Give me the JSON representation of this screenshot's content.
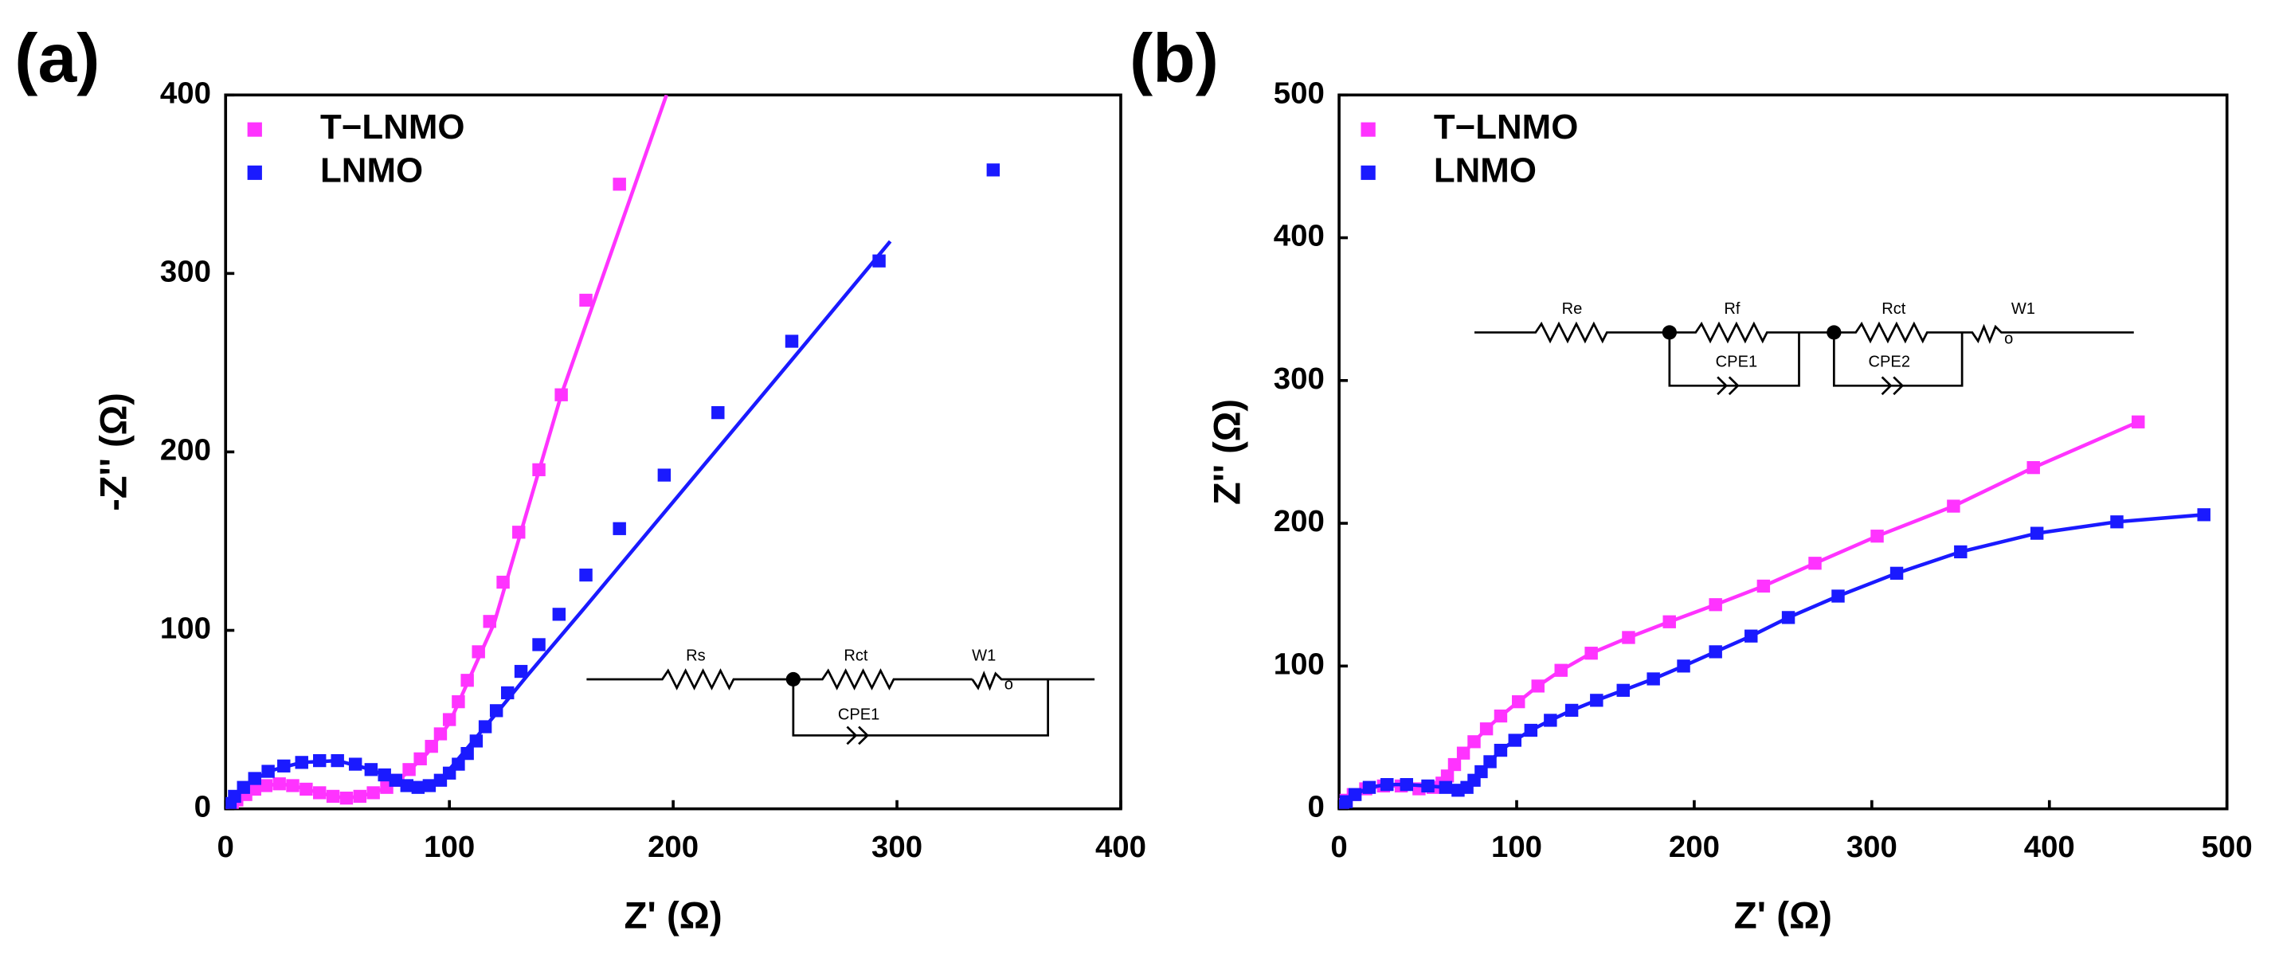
{
  "chart_data": [
    {
      "type": "scatter",
      "panel_label": "(a)",
      "xlabel": "Z' (Ω)",
      "ylabel": "-Z'' (Ω)",
      "xlim": [
        0,
        400
      ],
      "ylim": [
        0,
        400
      ],
      "xticks": [
        0,
        100,
        200,
        300,
        400
      ],
      "yticks": [
        0,
        100,
        200,
        300,
        400
      ],
      "legend": "upper left",
      "inset_labels": [
        "Rs",
        "Rct",
        "W1",
        "CPE1"
      ],
      "series": [
        {
          "name": "T−LNMO",
          "color": "#ff33ff",
          "x": [
            3,
            5,
            9,
            13,
            18,
            24,
            30,
            36,
            42,
            48,
            54,
            60,
            66,
            72,
            77,
            82,
            87,
            92,
            96,
            100,
            104,
            108,
            113,
            118,
            124,
            131,
            140,
            150,
            161,
            176
          ],
          "values": [
            2,
            5,
            8,
            11,
            13,
            14,
            13,
            11,
            9,
            7,
            6,
            7,
            9,
            12,
            16,
            22,
            28,
            35,
            42,
            50,
            60,
            72,
            88,
            105,
            127,
            155,
            190,
            232,
            285,
            350
          ]
        },
        {
          "name": "LNMO",
          "color": "#1a1aff",
          "x": [
            2,
            4,
            8,
            13,
            19,
            26,
            34,
            42,
            50,
            58,
            65,
            71,
            76,
            81,
            86,
            91,
            96,
            100,
            104,
            108,
            112,
            116,
            121,
            126,
            132,
            140,
            149,
            161,
            176,
            196,
            220,
            253,
            292,
            343
          ],
          "values": [
            3,
            7,
            12,
            17,
            21,
            24,
            26,
            27,
            27,
            25,
            22,
            19,
            16,
            13,
            12,
            13,
            16,
            20,
            25,
            31,
            38,
            46,
            55,
            65,
            77,
            92,
            109,
            131,
            157,
            187,
            222,
            262,
            307,
            358
          ]
        }
      ],
      "fits": [
        {
          "color": "#ff33ff",
          "x": [
            0,
            3,
            9,
            18,
            24,
            30,
            36,
            42,
            48,
            54,
            60,
            66,
            72,
            80,
            90,
            100,
            120,
            150,
            197
          ],
          "values": [
            0,
            2,
            8,
            13,
            14,
            13,
            11,
            9,
            7,
            6,
            7,
            9,
            12,
            19,
            31,
            48,
            104,
            232,
            400
          ]
        },
        {
          "color": "#1a1aff",
          "x": [
            0,
            2,
            8,
            19,
            34,
            50,
            65,
            76,
            86,
            96,
            104,
            112,
            122,
            135,
            160,
            200,
            250,
            297
          ],
          "values": [
            0,
            3,
            12,
            21,
            26,
            27,
            22,
            16,
            12,
            16,
            28,
            40,
            55,
            75,
            112,
            172,
            247,
            318
          ]
        }
      ]
    },
    {
      "type": "scatter",
      "panel_label": "(b)",
      "xlabel": "Z' (Ω)",
      "ylabel": "Z'' (Ω)",
      "xlim": [
        0,
        500
      ],
      "ylim": [
        0,
        500
      ],
      "xticks": [
        0,
        100,
        200,
        300,
        400,
        500
      ],
      "yticks": [
        0,
        100,
        200,
        300,
        400,
        500
      ],
      "legend": "upper left",
      "inset_labels": [
        "Re",
        "Rf",
        "Rct",
        "W1",
        "CPE1",
        "CPE2"
      ],
      "series": [
        {
          "name": "T−LNMO",
          "color": "#ff33ff",
          "line": true,
          "x": [
            2,
            4,
            8,
            15,
            25,
            35,
            45,
            53,
            58,
            61,
            65,
            70,
            76,
            83,
            91,
            101,
            112,
            125,
            142,
            163,
            186,
            212,
            239,
            268,
            303,
            346,
            391,
            450
          ],
          "values": [
            3,
            6,
            10,
            14,
            16,
            16,
            14,
            15,
            18,
            23,
            31,
            39,
            47,
            56,
            65,
            75,
            86,
            97,
            109,
            120,
            131,
            143,
            156,
            172,
            191,
            212,
            239,
            271
          ]
        },
        {
          "name": "LNMO",
          "color": "#1a1aff",
          "line": true,
          "x": [
            2,
            4,
            9,
            17,
            27,
            38,
            50,
            60,
            67,
            72,
            76,
            80,
            85,
            91,
            99,
            108,
            119,
            131,
            145,
            160,
            177,
            194,
            212,
            232,
            253,
            281,
            314,
            350,
            393,
            438,
            487
          ],
          "values": [
            2,
            5,
            10,
            15,
            17,
            17,
            16,
            15,
            13,
            15,
            20,
            26,
            33,
            41,
            48,
            55,
            62,
            69,
            76,
            83,
            91,
            100,
            110,
            121,
            134,
            149,
            165,
            180,
            193,
            201,
            206
          ]
        }
      ]
    }
  ]
}
